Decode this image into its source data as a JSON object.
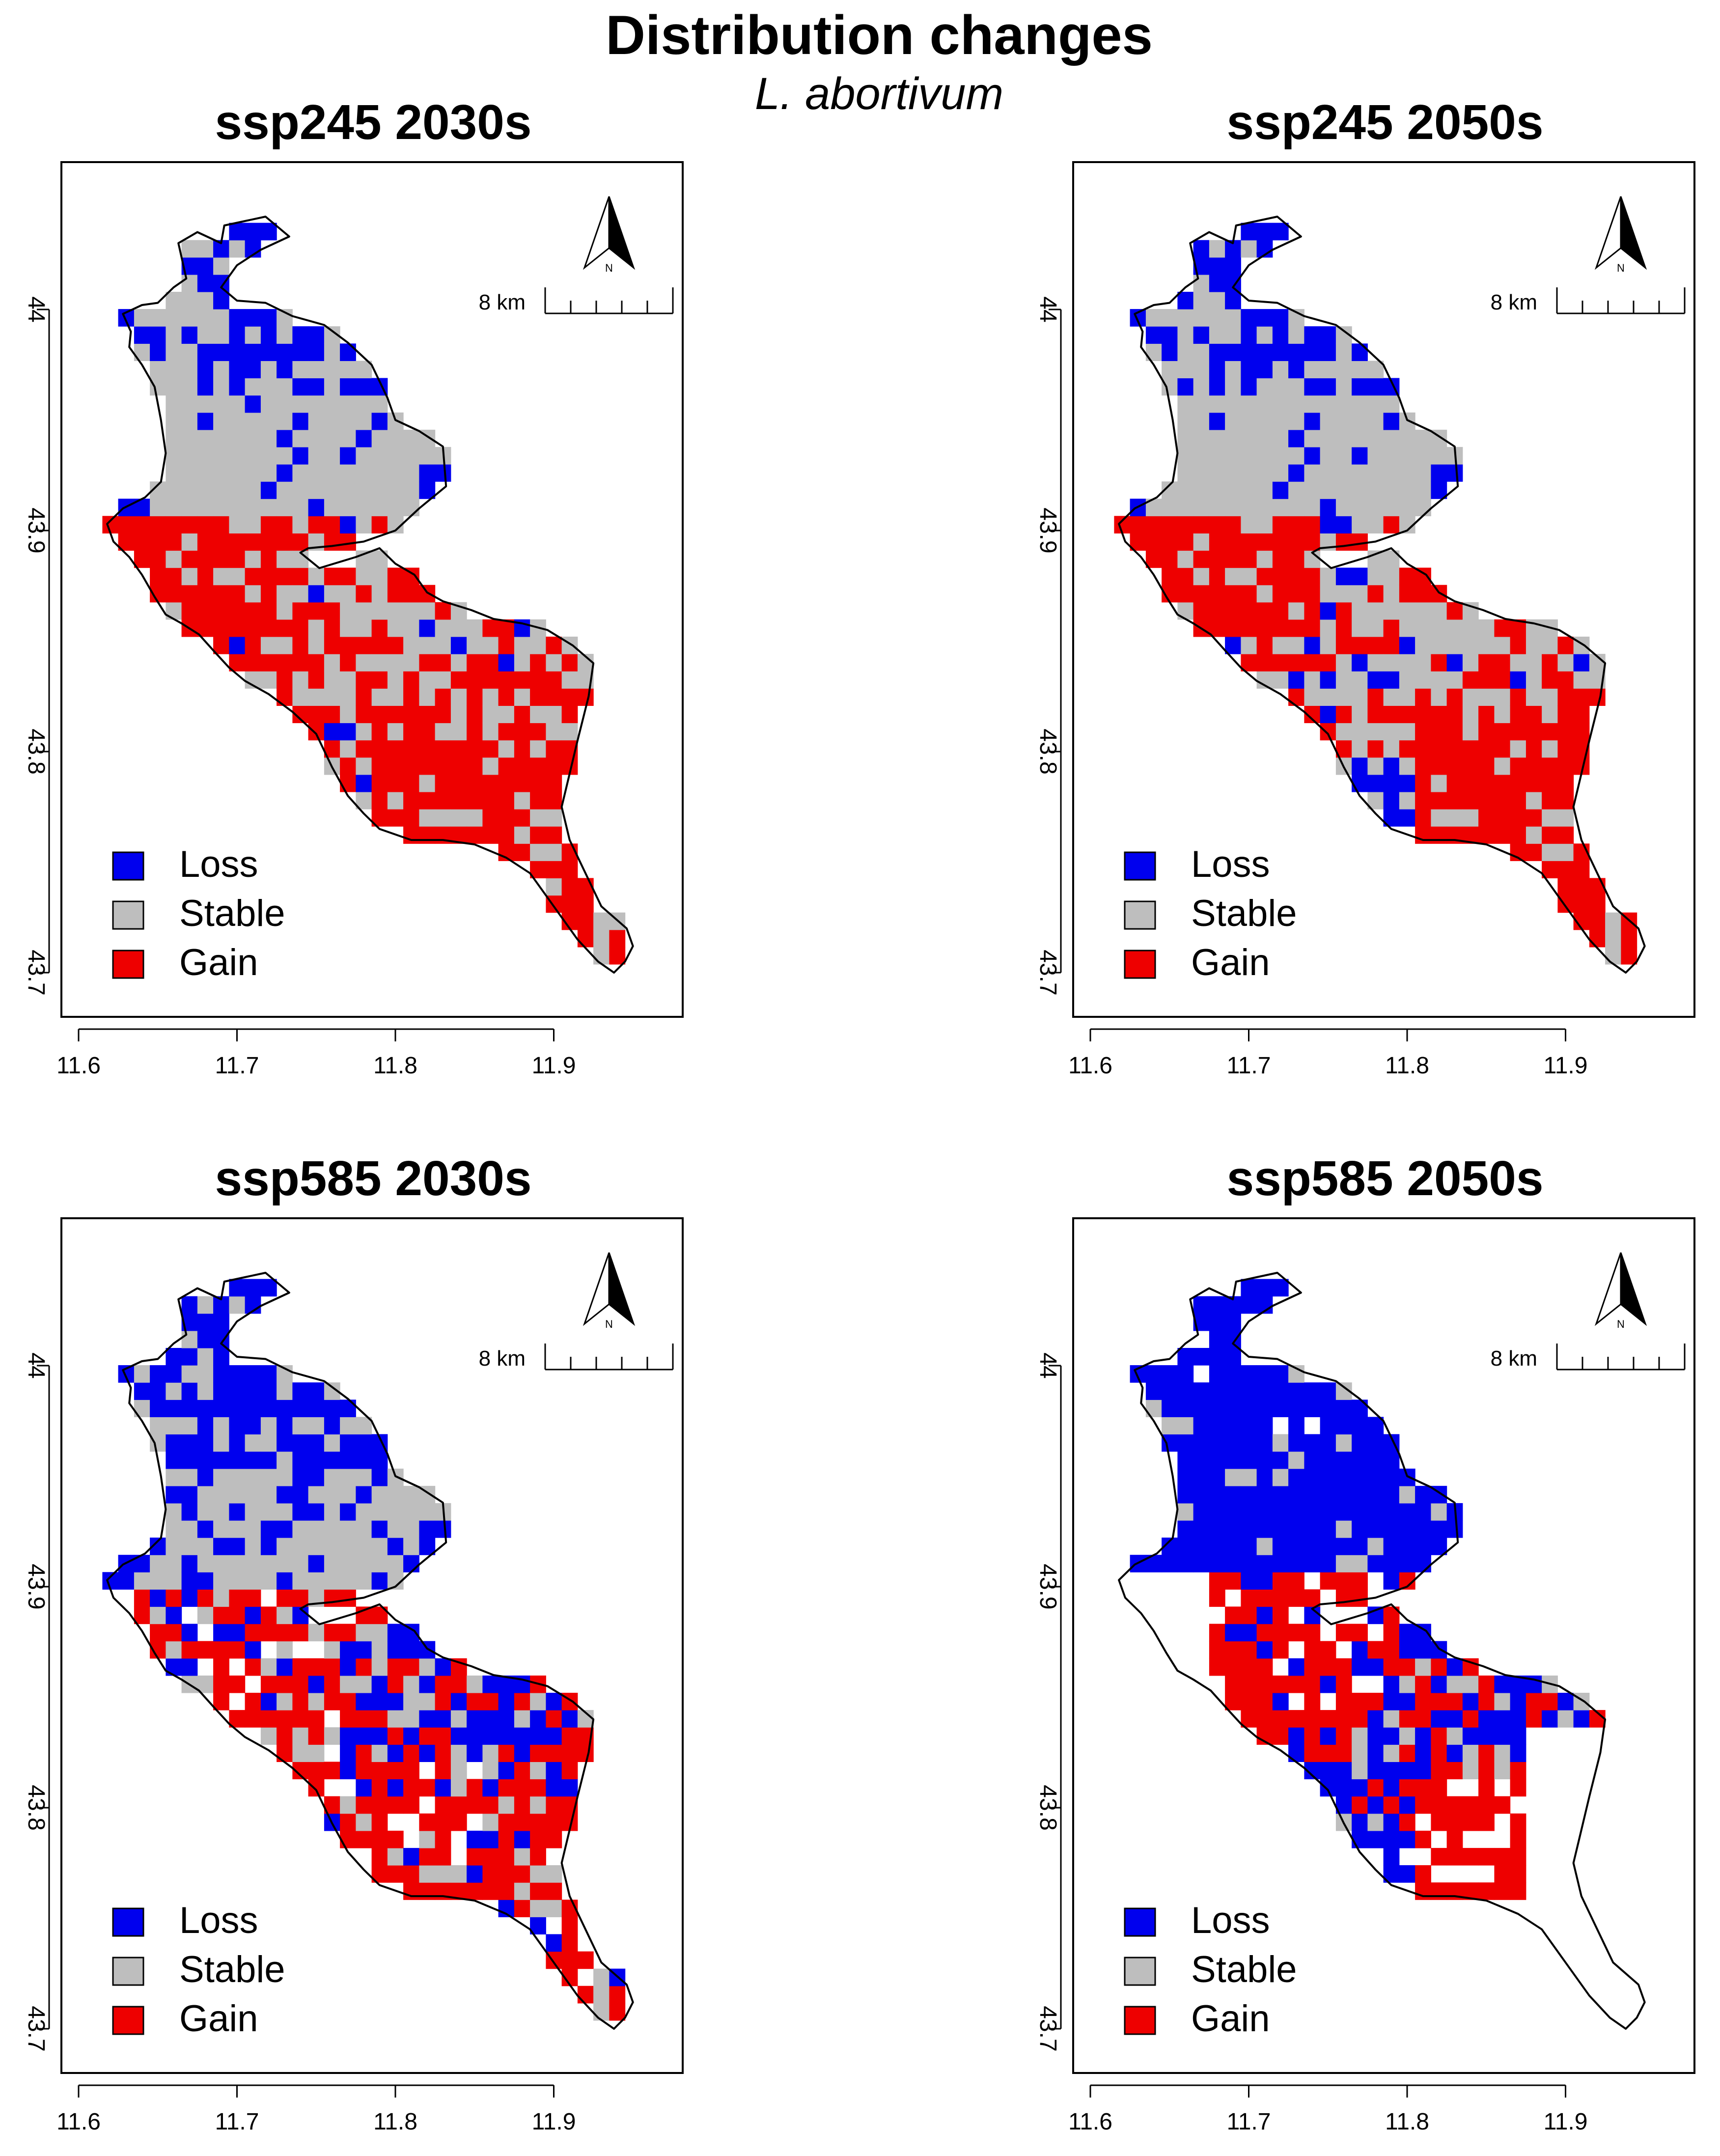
{
  "figure": {
    "title": "Distribution changes",
    "subtitle": "L. abortivum"
  },
  "legend": {
    "items": [
      {
        "label": "Loss",
        "color": "#0000EE"
      },
      {
        "label": "Stable",
        "color": "#BEBEBE"
      },
      {
        "label": "Gain",
        "color": "#EE0000"
      }
    ]
  },
  "scale_bar_label": "8 km",
  "north_arrow_label": "N",
  "x_ticks": [
    "11.6",
    "11.7",
    "11.8",
    "11.9"
  ],
  "y_ticks": [
    "44",
    "43.9",
    "43.8",
    "43.7"
  ],
  "panels": [
    {
      "title": "ssp245 2030s",
      "scenario": "ssp245",
      "period": "2030s"
    },
    {
      "title": "ssp245 2050s",
      "scenario": "ssp245",
      "period": "2050s"
    },
    {
      "title": "ssp585 2030s",
      "scenario": "ssp585",
      "period": "2030s"
    },
    {
      "title": "ssp585 2050s",
      "scenario": "ssp585",
      "period": "2050s"
    }
  ],
  "colors": {
    "loss": "#0000EE",
    "stable": "#BEBEBE",
    "gain": "#EE0000",
    "outline": "#000000"
  }
}
